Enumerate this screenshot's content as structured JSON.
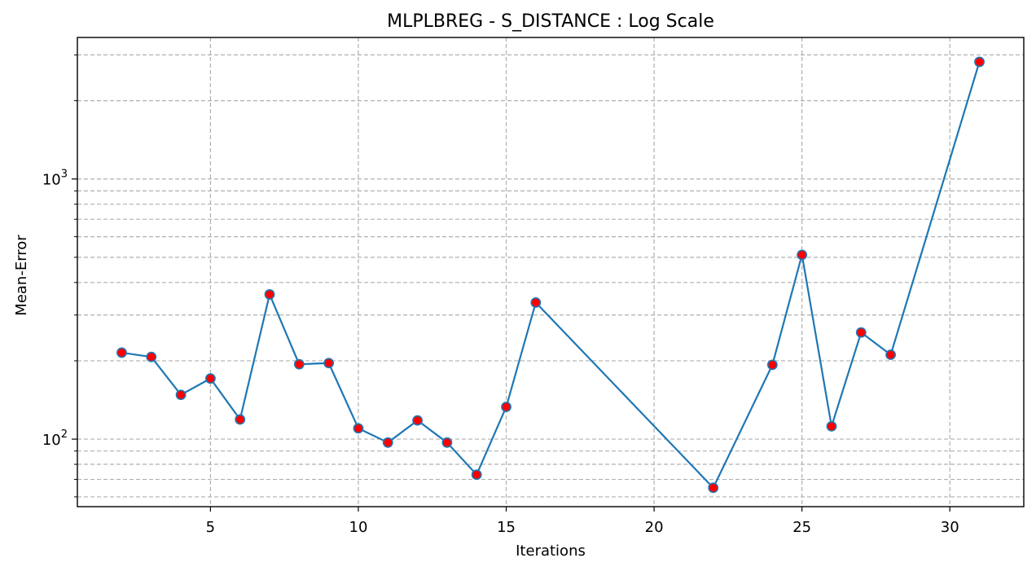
{
  "chart_data": {
    "type": "line",
    "title": "MLPLBREG - S_DISTANCE : Log Scale",
    "xlabel": "Iterations",
    "ylabel": "Mean-Error",
    "xlim": [
      0.5,
      32.5
    ],
    "ylim": [
      55,
      3500
    ],
    "yscale": "log",
    "grid": true,
    "x_ticks": [
      5,
      10,
      15,
      20,
      25,
      30
    ],
    "y_major_ticks": [
      {
        "value": 100,
        "base": "10",
        "exp": "2"
      },
      {
        "value": 1000,
        "base": "10",
        "exp": "3"
      }
    ],
    "y_minor_ticks": [
      60,
      70,
      80,
      90,
      200,
      300,
      400,
      500,
      600,
      700,
      800,
      900,
      2000,
      3000
    ],
    "line_color": "#1f77b4",
    "marker_face_color": "#ff0000",
    "marker_edge_color": "#1f77b4",
    "series": [
      {
        "x": [
          2,
          3,
          4,
          5,
          6,
          7,
          8,
          9,
          10,
          11,
          12,
          13,
          14,
          15,
          16,
          22,
          24,
          25,
          26,
          27,
          28,
          31
        ],
        "values": [
          215,
          207,
          148,
          171,
          119,
          360,
          194,
          196,
          110,
          97,
          118,
          97,
          73,
          133,
          335,
          65,
          193,
          511,
          112,
          257,
          211,
          2820
        ]
      }
    ]
  }
}
